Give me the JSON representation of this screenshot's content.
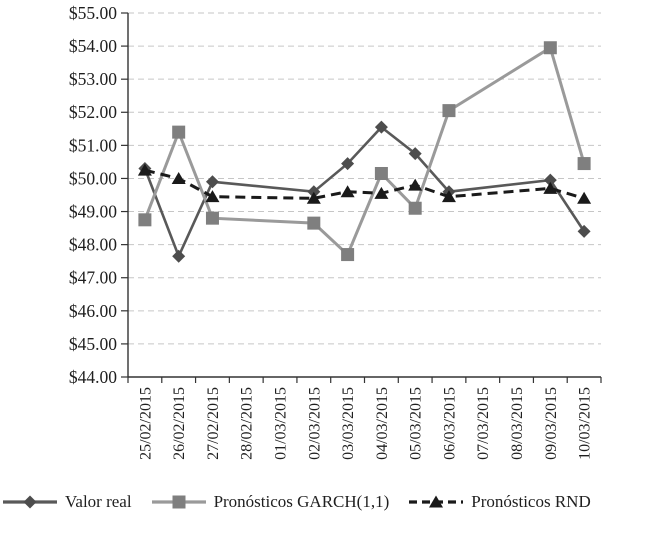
{
  "chart_data": {
    "type": "line",
    "title": "",
    "xlabel": "",
    "ylabel": "",
    "categories": [
      "25/02/2015",
      "26/02/2015",
      "27/02/2015",
      "28/02/2015",
      "01/03/2015",
      "02/03/2015",
      "03/03/2015",
      "04/03/2015",
      "05/03/2015",
      "06/03/2015",
      "07/03/2015",
      "08/03/2015",
      "09/03/2015",
      "10/03/2015"
    ],
    "series": [
      {
        "key": "valor-real",
        "name": "Valor real",
        "marker": "diamond",
        "line_style": "solid",
        "line_color": "#595959",
        "marker_color": "#4d4d4d",
        "values": [
          50.3,
          47.65,
          49.9,
          null,
          null,
          49.6,
          50.45,
          51.55,
          50.75,
          49.6,
          null,
          null,
          49.95,
          48.4
        ]
      },
      {
        "key": "garch",
        "name": "Pronósticos GARCH(1,1)",
        "marker": "square",
        "line_style": "solid",
        "line_color": "#9a9a9a",
        "marker_color": "#7f7f7f",
        "values": [
          48.75,
          51.4,
          48.8,
          null,
          null,
          48.65,
          47.7,
          50.15,
          49.1,
          52.05,
          null,
          null,
          53.95,
          50.45
        ]
      },
      {
        "key": "rnd",
        "name": "Pronósticos RND",
        "marker": "triangle",
        "line_style": "dashed",
        "line_color": "#1a1a1a",
        "marker_color": "#1a1a1a",
        "values": [
          50.25,
          50.0,
          49.45,
          null,
          null,
          49.4,
          49.6,
          49.55,
          49.8,
          49.45,
          null,
          null,
          49.7,
          49.4
        ]
      }
    ],
    "y_axis": {
      "min": 44,
      "max": 55,
      "step": 1,
      "tick_labels": [
        "$55.00",
        "$54.00",
        "$53.00",
        "$52.00",
        "$51.00",
        "$50.00",
        "$49.00",
        "$48.00",
        "$47.00",
        "$46.00",
        "$45.00",
        "$44.00"
      ]
    },
    "grid": "horizontal-dashed",
    "legend_position": "bottom",
    "gap_dates_no_data": [
      "28/02/2015",
      "01/03/2015",
      "07/03/2015",
      "08/03/2015"
    ]
  },
  "colors": {
    "gridline": "#c6c6c6",
    "axis": "#333333",
    "text": "#1f1f1f",
    "background": "#ffffff"
  }
}
